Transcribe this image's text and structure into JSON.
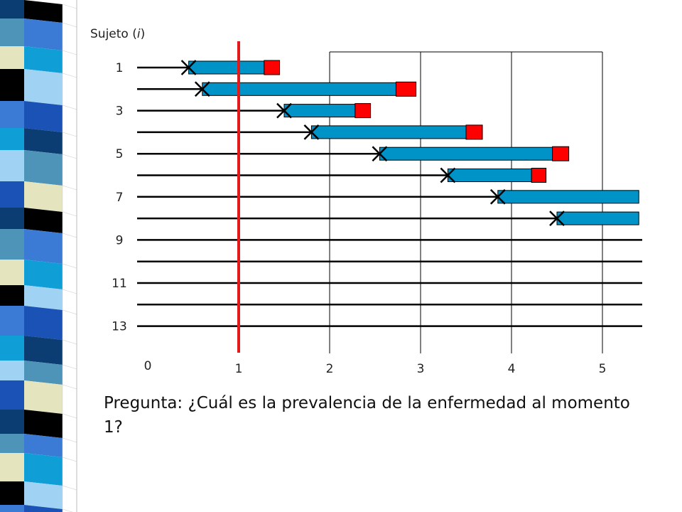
{
  "diagram": {
    "y_title_prefix": "Sujeto (",
    "y_title_var": "i",
    "y_title_suffix": ")",
    "subject_count": 13,
    "subject_labels": [
      "1",
      "3",
      "5",
      "7",
      "9",
      "11",
      "13"
    ],
    "x_ticks": [
      "0",
      "1",
      "2",
      "3",
      "4",
      "5"
    ],
    "reference_time": 1,
    "subjects": [
      {
        "onset": 0.45,
        "end": 1.28,
        "disease_end": 1.45
      },
      {
        "onset": 0.6,
        "end": 2.73,
        "disease_end": 2.95
      },
      {
        "onset": 1.5,
        "end": 2.28,
        "disease_end": 2.45
      },
      {
        "onset": 1.8,
        "end": 3.5,
        "disease_end": 3.68
      },
      {
        "onset": 2.55,
        "end": 4.45,
        "disease_end": 4.63
      },
      {
        "onset": 3.3,
        "end": 4.22,
        "disease_end": 4.38
      },
      {
        "onset": 3.85,
        "end": 5.4,
        "disease_end": null
      },
      {
        "onset": 4.5,
        "end": 5.4,
        "disease_end": null
      },
      {
        "onset": null
      },
      {
        "onset": null
      },
      {
        "onset": null
      },
      {
        "onset": null
      },
      {
        "onset": null
      }
    ],
    "colors": {
      "bar": "#0093c8",
      "end_marker": "#ff0000",
      "reference_line": "#e11b1b",
      "line": "#000000"
    }
  },
  "question": "Pregunta: ¿Cuál es la prevalencia de la enfermedad al momento 1?"
}
